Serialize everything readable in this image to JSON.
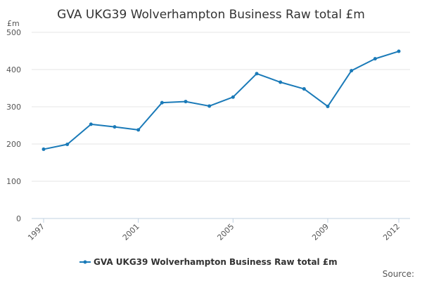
{
  "title": "GVA UKG39 Wolverhampton Business Raw total £m",
  "source_label": "Source:",
  "colors": {
    "series": "#1a7ab8",
    "grid": "#e6e6e6",
    "axis": "#c0d0e0"
  },
  "chart_data": {
    "type": "line",
    "title": "GVA UKG39 Wolverhampton Business Raw total £m",
    "y_unit_label": "£m",
    "xlabel": "",
    "ylabel": "",
    "x": [
      1997,
      1998,
      1999,
      2000,
      2001,
      2002,
      2003,
      2004,
      2005,
      2006,
      2007,
      2008,
      2009,
      2010,
      2011,
      2012
    ],
    "x_tick_labels": [
      "1997",
      "2001",
      "2005",
      "2009",
      "2012"
    ],
    "y_tick_labels": [
      "0",
      "100",
      "200",
      "300",
      "400",
      "500"
    ],
    "ylim": [
      0,
      500
    ],
    "grid": true,
    "legend_position": "bottom",
    "series": [
      {
        "name": "GVA UKG39 Wolverhampton Business Raw total £m",
        "values": [
          186,
          199,
          253,
          246,
          238,
          311,
          314,
          302,
          326,
          389,
          366,
          348,
          301,
          397,
          429,
          449
        ]
      }
    ]
  }
}
